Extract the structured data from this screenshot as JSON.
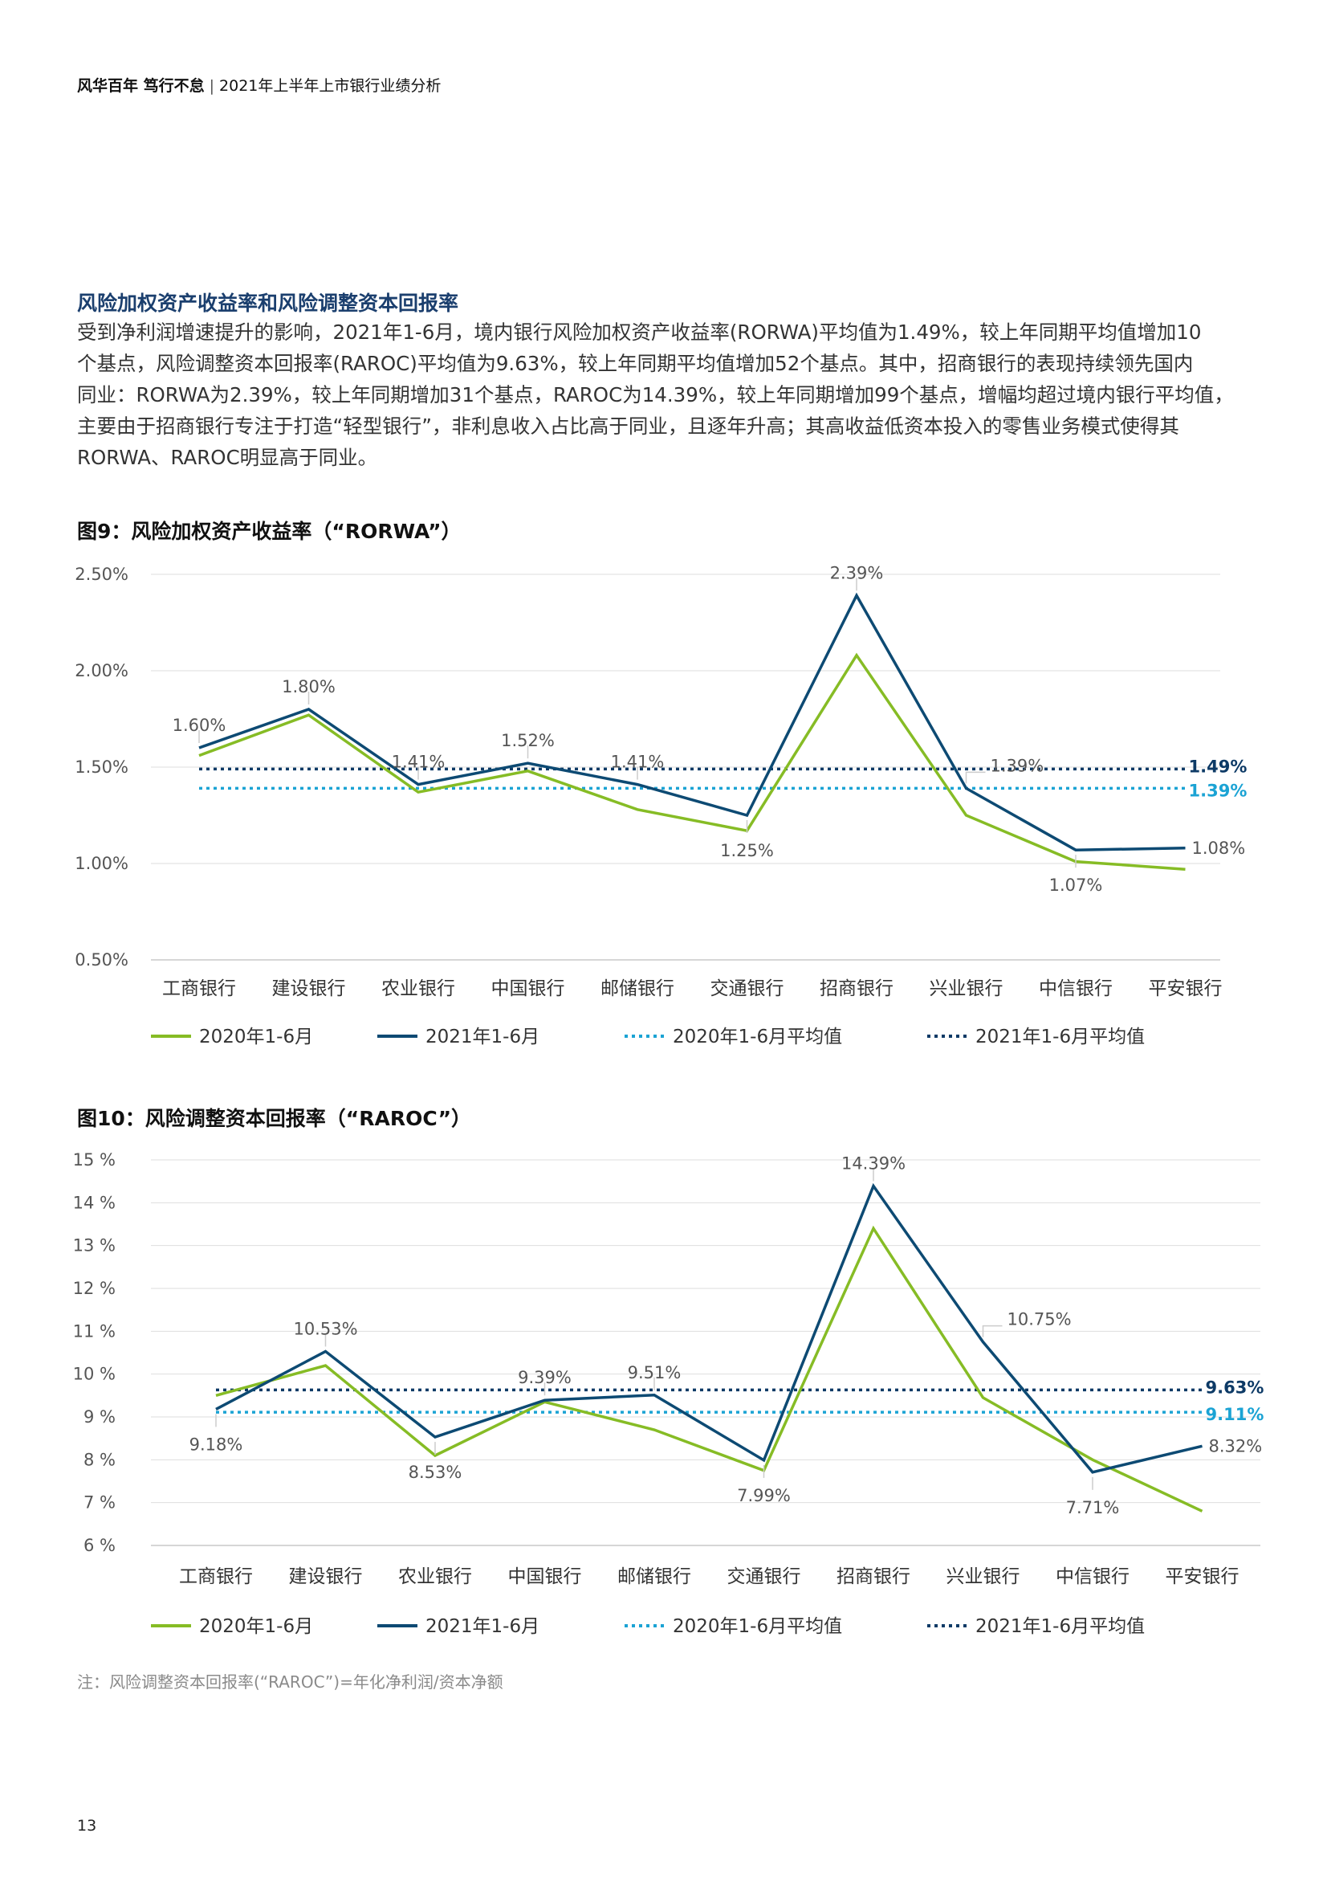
{
  "header": {
    "bold": "风华百年 笃行不怠",
    "separator": "|",
    "subtitle": "2021年上半年上市银行业绩分析"
  },
  "section": {
    "title": "风险加权资产收益率和风险调整资本回报率"
  },
  "body": {
    "lines": [
      "受到净利润增速提升的影响，2021年1-6月，境内银行风险加权资产收益率(RORWA)平均值为1.49%，较上年同期平均值增加10",
      "个基点，风险调整资本回报率(RAROC)平均值为9.63%，较上年同期平均值增加52个基点。其中，招商银行的表现持续领先国内",
      "同业：RORWA为2.39%，较上年同期增加31个基点，RAROC为14.39%，较上年同期增加99个基点，增幅均超过境内银行平均值，",
      "主要由于招商银行专注于打造“轻型银行”，非利息收入占比高于同业，且逐年升高；其高收益低资本投入的零售业务模式使得其",
      "RORWA、RAROC明显高于同业。"
    ]
  },
  "colors": {
    "green": "#86bc25",
    "navy": "#0d4a73",
    "teal": "#1ba3d4",
    "dark_dots": "#0d3a66"
  },
  "chart_data": [
    {
      "id": "fig9",
      "title": "图9：风险加权资产收益率（“RORWA”）",
      "type": "line",
      "categories": [
        "工商银行",
        "建设银行",
        "农业银行",
        "中国银行",
        "邮储银行",
        "交通银行",
        "招商银行",
        "兴业银行",
        "中信银行",
        "平安银行"
      ],
      "ylim": [
        0.5,
        2.5
      ],
      "yticks": [
        0.5,
        1.0,
        1.5,
        2.0,
        2.5
      ],
      "ytick_labels": [
        "0.50%",
        "1.00%",
        "1.50%",
        "2.00%",
        "2.50%"
      ],
      "grid": true,
      "series": [
        {
          "name": "2020年1-6月",
          "color": "#86bc25",
          "values": [
            1.56,
            1.77,
            1.37,
            1.48,
            1.28,
            1.17,
            2.08,
            1.25,
            1.01,
            0.97
          ]
        },
        {
          "name": "2021年1-6月",
          "color": "#0d4a73",
          "values": [
            1.6,
            1.8,
            1.41,
            1.52,
            1.41,
            1.25,
            2.39,
            1.39,
            1.07,
            1.08
          ]
        }
      ],
      "averages": [
        {
          "name": "2020年1-6月平均值",
          "value": 1.39,
          "label": "1.39%",
          "color": "#1ba3d4"
        },
        {
          "name": "2021年1-6月平均值",
          "value": 1.49,
          "label": "1.49%",
          "color": "#0d3a66"
        }
      ],
      "data_labels": [
        {
          "cat": 0,
          "text": "1.60%",
          "pos": "above"
        },
        {
          "cat": 1,
          "text": "1.80%",
          "pos": "above"
        },
        {
          "cat": 2,
          "text": "1.41%",
          "pos": "above"
        },
        {
          "cat": 3,
          "text": "1.52%",
          "pos": "above"
        },
        {
          "cat": 4,
          "text": "1.41%",
          "pos": "above"
        },
        {
          "cat": 5,
          "text": "1.25%",
          "pos": "below"
        },
        {
          "cat": 6,
          "text": "2.39%",
          "pos": "above"
        },
        {
          "cat": 7,
          "text": "1.39%",
          "pos": "above-right"
        },
        {
          "cat": 8,
          "text": "1.07%",
          "pos": "below"
        },
        {
          "cat": 9,
          "text": "1.08%",
          "pos": "right"
        }
      ]
    },
    {
      "id": "fig10",
      "title": "图10：风险调整资本回报率（“RAROC”）",
      "type": "line",
      "categories": [
        "工商银行",
        "建设银行",
        "农业银行",
        "中国银行",
        "邮储银行",
        "交通银行",
        "招商银行",
        "兴业银行",
        "中信银行",
        "平安银行"
      ],
      "ylim": [
        6,
        15
      ],
      "yticks": [
        6,
        7,
        8,
        9,
        10,
        11,
        12,
        13,
        14,
        15
      ],
      "ytick_labels": [
        "6 %",
        "7 %",
        "8 %",
        "9 %",
        "10 %",
        "11 %",
        "12 %",
        "13 %",
        "14 %",
        "15 %"
      ],
      "grid": true,
      "series": [
        {
          "name": "2020年1-6月",
          "color": "#86bc25",
          "values": [
            9.5,
            10.2,
            8.1,
            9.35,
            8.7,
            7.75,
            13.4,
            9.45,
            8.0,
            6.8
          ]
        },
        {
          "name": "2021年1-6月",
          "color": "#0d4a73",
          "values": [
            9.18,
            10.53,
            8.53,
            9.39,
            9.51,
            7.99,
            14.39,
            10.75,
            7.71,
            8.32
          ]
        }
      ],
      "averages": [
        {
          "name": "2020年1-6月平均值",
          "value": 9.11,
          "label": "9.11%",
          "color": "#1ba3d4"
        },
        {
          "name": "2021年1-6月平均值",
          "value": 9.63,
          "label": "9.63%",
          "color": "#0d3a66"
        }
      ],
      "data_labels": [
        {
          "cat": 0,
          "text": "9.18%",
          "pos": "below"
        },
        {
          "cat": 1,
          "text": "10.53%",
          "pos": "above"
        },
        {
          "cat": 2,
          "text": "8.53%",
          "pos": "below"
        },
        {
          "cat": 3,
          "text": "9.39%",
          "pos": "above"
        },
        {
          "cat": 4,
          "text": "9.51%",
          "pos": "above"
        },
        {
          "cat": 5,
          "text": "7.99%",
          "pos": "below"
        },
        {
          "cat": 6,
          "text": "14.39%",
          "pos": "above"
        },
        {
          "cat": 7,
          "text": "10.75%",
          "pos": "above-right"
        },
        {
          "cat": 8,
          "text": "7.71%",
          "pos": "below"
        },
        {
          "cat": 9,
          "text": "8.32%",
          "pos": "right"
        }
      ]
    }
  ],
  "footnote": "注：风险调整资本回报率(“RAROC”)=年化净利润/资本净额",
  "page_number": "13"
}
